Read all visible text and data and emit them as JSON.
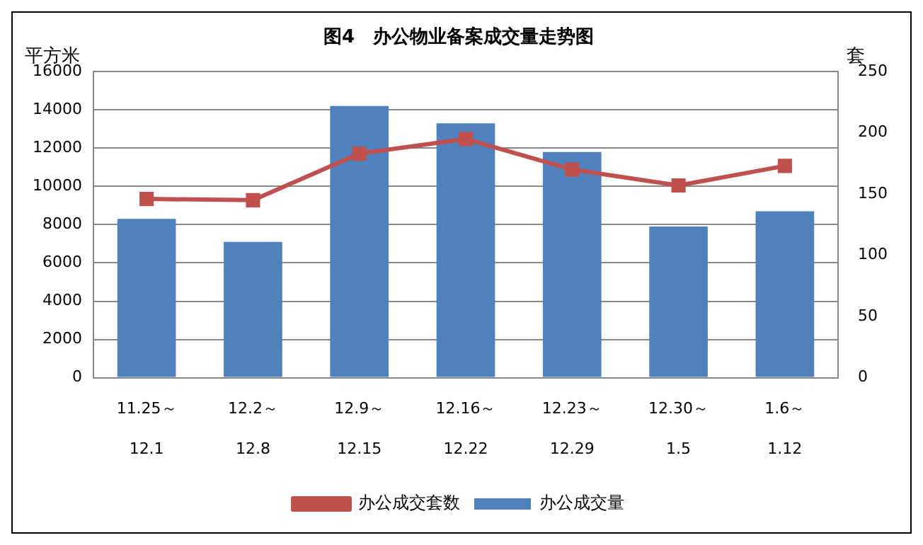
{
  "chart_data": {
    "type": "bar",
    "title": "图4　办公物业备案成交量走势图",
    "ylabel": "平方米",
    "y2label": "套",
    "categories": [
      "11.25～\n12.1",
      "12.2～\n12.8",
      "12.9～\n12.15",
      "12.16～\n12.22",
      "12.23～\n12.29",
      "12.30～\n1.5",
      "1.6～\n1.12"
    ],
    "series": [
      {
        "name": "办公成交量",
        "color": "#4f81bd",
        "values": [
          8300,
          7100,
          14200,
          13300,
          11800,
          7900,
          8700
        ]
      },
      {
        "name": "办公成交套数",
        "type": "line",
        "axis": "y2",
        "color": "#c0504d",
        "marker": "square",
        "values": [
          146,
          145,
          183,
          195,
          170,
          157,
          173
        ]
      }
    ],
    "ylim": [
      0,
      16000
    ],
    "yticks": [
      0,
      2000,
      4000,
      6000,
      8000,
      10000,
      12000,
      14000,
      16000
    ],
    "y2lim": [
      0,
      250
    ],
    "y2ticks": [
      0,
      50,
      100,
      150,
      200,
      250
    ],
    "grid": "y",
    "legend": "bottom"
  }
}
